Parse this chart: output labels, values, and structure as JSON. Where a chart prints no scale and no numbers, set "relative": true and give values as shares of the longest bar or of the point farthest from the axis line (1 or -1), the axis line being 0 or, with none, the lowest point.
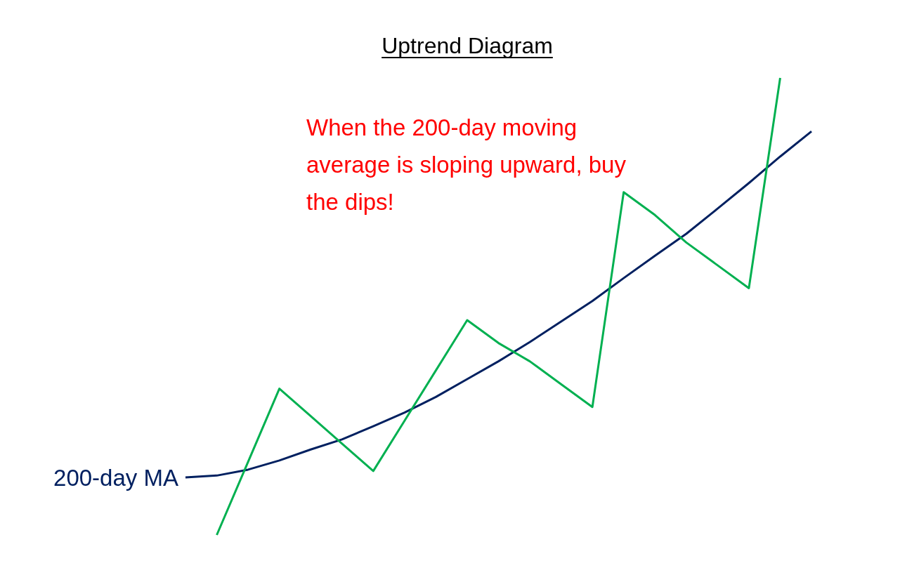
{
  "chart_data": {
    "type": "line",
    "title": "Uptrend Diagram",
    "relative": true,
    "marker": "none",
    "line_style": "solid",
    "annotations": [
      "When the 200-day moving average is sloping upward, buy the dips!"
    ],
    "categories": [
      null,
      null,
      null,
      null,
      null,
      null,
      null,
      null,
      null,
      null,
      null,
      null,
      null,
      null,
      null,
      null,
      null,
      null,
      null,
      null,
      null
    ],
    "series": [
      {
        "name": "200-day MA",
        "color": "#002060",
        "values": [
          0.126,
          0.13,
          0.143,
          0.163,
          0.187,
          0.209,
          0.238,
          0.268,
          0.302,
          0.341,
          0.38,
          0.422,
          0.467,
          0.512,
          0.562,
          0.611,
          0.659,
          0.714,
          0.77,
          0.828,
          0.883
        ]
      },
      {
        "color": "#00b050",
        "values": [
          null,
          0,
          0.16,
          0.32,
          0.26,
          0.2,
          0.14,
          0.25,
          0.36,
          0.47,
          0.42,
          0.38,
          0.33,
          0.28,
          0.75,
          0.7,
          0.64,
          0.59,
          0.54,
          1,
          null
        ]
      }
    ]
  }
}
